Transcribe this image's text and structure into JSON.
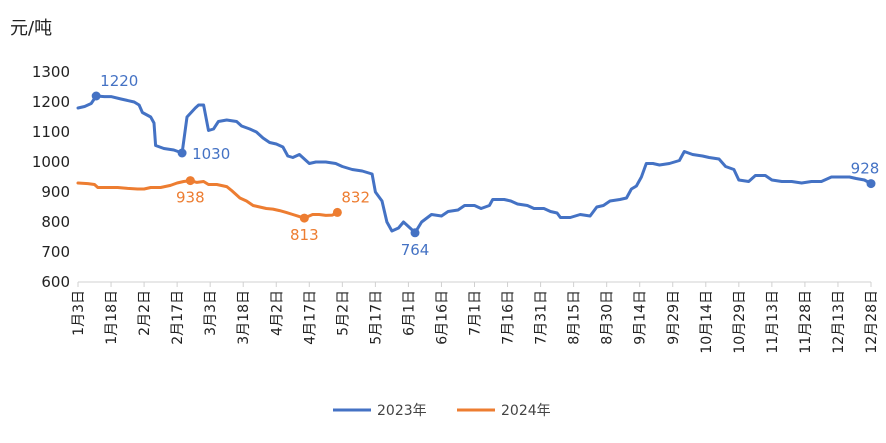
{
  "chart_data": {
    "type": "line",
    "ylabel": "元/吨",
    "ylim": [
      600,
      1300
    ],
    "yticks": [
      600,
      700,
      800,
      900,
      1000,
      1100,
      1200,
      1300
    ],
    "x_categories": [
      "1月3日",
      "1月18日",
      "2月2日",
      "2月17日",
      "3月3日",
      "3月18日",
      "4月2日",
      "4月17日",
      "5月2日",
      "5月17日",
      "6月1日",
      "6月16日",
      "7月1日",
      "7月16日",
      "7月31日",
      "8月15日",
      "8月30日",
      "9月14日",
      "9月29日",
      "10月14日",
      "10月29日",
      "11月13日",
      "11月28日",
      "12月13日",
      "12月28日"
    ],
    "legend_position": "bottom",
    "series": [
      {
        "name": "2023年",
        "color": "#4472C4",
        "points": [
          [
            0,
            1180
          ],
          [
            0.2,
            1185
          ],
          [
            0.4,
            1195
          ],
          [
            0.55,
            1220
          ],
          [
            0.8,
            1218
          ],
          [
            1.0,
            1218
          ],
          [
            1.3,
            1210
          ],
          [
            1.7,
            1200
          ],
          [
            1.85,
            1190
          ],
          [
            1.95,
            1165
          ],
          [
            2.2,
            1150
          ],
          [
            2.3,
            1130
          ],
          [
            2.35,
            1055
          ],
          [
            2.6,
            1045
          ],
          [
            2.9,
            1040
          ],
          [
            3.15,
            1030
          ],
          [
            3.3,
            1150
          ],
          [
            3.55,
            1180
          ],
          [
            3.65,
            1190
          ],
          [
            3.8,
            1190
          ],
          [
            3.95,
            1105
          ],
          [
            4.1,
            1110
          ],
          [
            4.25,
            1135
          ],
          [
            4.5,
            1140
          ],
          [
            4.8,
            1135
          ],
          [
            4.95,
            1120
          ],
          [
            5.2,
            1110
          ],
          [
            5.4,
            1100
          ],
          [
            5.6,
            1080
          ],
          [
            5.8,
            1065
          ],
          [
            6.0,
            1060
          ],
          [
            6.2,
            1050
          ],
          [
            6.35,
            1020
          ],
          [
            6.5,
            1015
          ],
          [
            6.7,
            1025
          ],
          [
            6.9,
            1005
          ],
          [
            7.0,
            995
          ],
          [
            7.2,
            1000
          ],
          [
            7.5,
            1000
          ],
          [
            7.8,
            995
          ],
          [
            8.0,
            985
          ],
          [
            8.3,
            975
          ],
          [
            8.6,
            970
          ],
          [
            8.9,
            960
          ],
          [
            9.0,
            900
          ],
          [
            9.2,
            870
          ],
          [
            9.35,
            800
          ],
          [
            9.5,
            770
          ],
          [
            9.7,
            780
          ],
          [
            9.85,
            800
          ],
          [
            9.95,
            790
          ],
          [
            10.1,
            775
          ],
          [
            10.2,
            764
          ],
          [
            10.4,
            800
          ],
          [
            10.7,
            825
          ],
          [
            11.0,
            820
          ],
          [
            11.2,
            835
          ],
          [
            11.5,
            840
          ],
          [
            11.7,
            855
          ],
          [
            12.0,
            855
          ],
          [
            12.2,
            845
          ],
          [
            12.45,
            855
          ],
          [
            12.55,
            875
          ],
          [
            12.9,
            875
          ],
          [
            13.1,
            870
          ],
          [
            13.3,
            860
          ],
          [
            13.6,
            855
          ],
          [
            13.8,
            845
          ],
          [
            14.1,
            845
          ],
          [
            14.3,
            835
          ],
          [
            14.5,
            830
          ],
          [
            14.6,
            815
          ],
          [
            14.9,
            815
          ],
          [
            15.2,
            825
          ],
          [
            15.5,
            820
          ],
          [
            15.7,
            850
          ],
          [
            15.9,
            855
          ],
          [
            16.1,
            870
          ],
          [
            16.4,
            875
          ],
          [
            16.6,
            880
          ],
          [
            16.75,
            910
          ],
          [
            16.9,
            920
          ],
          [
            17.05,
            950
          ],
          [
            17.2,
            995
          ],
          [
            17.4,
            995
          ],
          [
            17.6,
            990
          ],
          [
            17.9,
            995
          ],
          [
            18.2,
            1005
          ],
          [
            18.35,
            1035
          ],
          [
            18.6,
            1025
          ],
          [
            18.9,
            1020
          ],
          [
            19.1,
            1015
          ],
          [
            19.4,
            1010
          ],
          [
            19.6,
            985
          ],
          [
            19.85,
            975
          ],
          [
            20.0,
            940
          ],
          [
            20.3,
            935
          ],
          [
            20.5,
            955
          ],
          [
            20.8,
            955
          ],
          [
            21.0,
            940
          ],
          [
            21.3,
            935
          ],
          [
            21.6,
            935
          ],
          [
            21.9,
            930
          ],
          [
            22.2,
            935
          ],
          [
            22.5,
            935
          ],
          [
            22.8,
            950
          ],
          [
            23.1,
            950
          ],
          [
            23.35,
            950
          ],
          [
            23.55,
            945
          ],
          [
            23.8,
            940
          ],
          [
            24.0,
            928
          ]
        ],
        "labels": [
          {
            "x": 0.55,
            "y": 1220,
            "text": "1220",
            "pos": "above"
          },
          {
            "x": 3.15,
            "y": 1030,
            "text": "1030",
            "pos": "right"
          },
          {
            "x": 10.2,
            "y": 764,
            "text": "764",
            "pos": "below"
          },
          {
            "x": 24.0,
            "y": 928,
            "text": "928",
            "pos": "above"
          }
        ]
      },
      {
        "name": "2024年",
        "color": "#ED7D31",
        "points": [
          [
            0,
            930
          ],
          [
            0.3,
            928
          ],
          [
            0.5,
            925
          ],
          [
            0.6,
            915
          ],
          [
            0.9,
            915
          ],
          [
            1.2,
            915
          ],
          [
            1.5,
            912
          ],
          [
            1.8,
            910
          ],
          [
            2.0,
            910
          ],
          [
            2.2,
            915
          ],
          [
            2.5,
            915
          ],
          [
            2.8,
            922
          ],
          [
            3.0,
            930
          ],
          [
            3.2,
            935
          ],
          [
            3.4,
            938
          ],
          [
            3.6,
            932
          ],
          [
            3.8,
            935
          ],
          [
            3.95,
            925
          ],
          [
            4.2,
            925
          ],
          [
            4.5,
            918
          ],
          [
            4.65,
            905
          ],
          [
            4.8,
            890
          ],
          [
            4.9,
            880
          ],
          [
            5.1,
            870
          ],
          [
            5.3,
            855
          ],
          [
            5.5,
            850
          ],
          [
            5.7,
            845
          ],
          [
            5.9,
            843
          ],
          [
            6.1,
            838
          ],
          [
            6.3,
            832
          ],
          [
            6.5,
            825
          ],
          [
            6.7,
            818
          ],
          [
            6.85,
            813
          ],
          [
            7.1,
            825
          ],
          [
            7.3,
            825
          ],
          [
            7.5,
            822
          ],
          [
            7.7,
            823
          ],
          [
            7.85,
            832
          ]
        ],
        "labels": [
          {
            "x": 3.4,
            "y": 938,
            "text": "938",
            "pos": "below"
          },
          {
            "x": 6.85,
            "y": 813,
            "text": "813",
            "pos": "below"
          },
          {
            "x": 7.85,
            "y": 832,
            "text": "832",
            "pos": "above"
          }
        ]
      }
    ]
  }
}
